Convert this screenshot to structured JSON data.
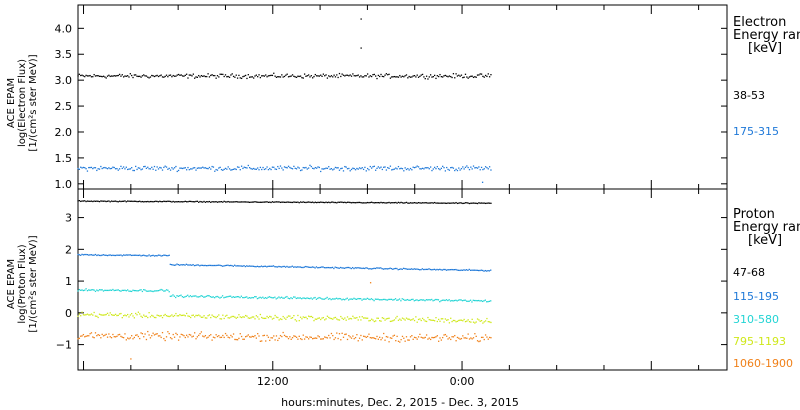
{
  "chart_data": [
    {
      "type": "scatter",
      "panel": "electron",
      "ylabel": [
        "ACE EPAM",
        "log(Electron Flux)",
        "[1/(cm²s ster MeV)]"
      ],
      "ylim": [
        0.9,
        4.45
      ],
      "yticks": [
        1.0,
        1.5,
        2.0,
        2.5,
        3.0,
        3.5,
        4.0
      ],
      "ytick_labels": [
        "1.0",
        "1.5",
        "2.0",
        "2.5",
        "3.0",
        "3.5",
        "4.0"
      ],
      "legend": {
        "title": [
          "Electron",
          "Energy ran",
          "[keV]"
        ],
        "placement": "right"
      },
      "series": [
        {
          "name": "38-53",
          "color": "#000000",
          "level": 3.08,
          "noise": 0.06,
          "outliers": [
            [
              17.6,
              3.62
            ],
            [
              17.6,
              4.18
            ]
          ]
        },
        {
          "name": "175-315",
          "color": "#1e78d8",
          "level": 1.3,
          "noise": 0.07,
          "outliers": [
            [
              25.3,
              1.03
            ]
          ]
        }
      ]
    },
    {
      "type": "scatter",
      "panel": "proton",
      "ylabel": [
        "ACE EPAM",
        "log(Proton Flux)",
        "[1/(cm²s ster MeV)]"
      ],
      "ylim": [
        -1.8,
        3.9
      ],
      "yticks": [
        -1,
        0,
        1,
        2,
        3
      ],
      "ytick_labels": [
        "−1",
        "0",
        "1",
        "2",
        "3"
      ],
      "legend": {
        "title": [
          "Proton",
          "Energy ran",
          "[keV]"
        ],
        "placement": "right"
      },
      "series": [
        {
          "name": "47-68",
          "color": "#000000",
          "segments": [
            [
              -0.35,
              25.9,
              3.52,
              3.45
            ]
          ],
          "noise": 0.02
        },
        {
          "name": "115-195",
          "color": "#1e78d8",
          "segments": [
            [
              -0.35,
              5.5,
              1.83,
              1.8
            ],
            [
              5.5,
              25.9,
              1.52,
              1.33
            ]
          ],
          "noise": 0.03
        },
        {
          "name": "310-580",
          "color": "#22d4d4",
          "segments": [
            [
              -0.35,
              5.5,
              0.72,
              0.7
            ],
            [
              5.5,
              25.9,
              0.53,
              0.37
            ]
          ],
          "noise": 0.05
        },
        {
          "name": "795-1193",
          "color": "#cfe81a",
          "segments": [
            [
              -0.35,
              25.9,
              -0.05,
              -0.25
            ]
          ],
          "noise": 0.12
        },
        {
          "name": "1060-1900",
          "color": "#f08018",
          "segments": [
            [
              -0.35,
              25.9,
              -0.72,
              -0.8
            ]
          ],
          "noise": 0.18,
          "outliers": [
            [
              3.0,
              -1.45
            ],
            [
              18.2,
              0.95
            ]
          ]
        }
      ]
    }
  ],
  "x_axis": {
    "label": "hours:minutes, Dec.  2, 2015 - Dec.  3, 2015",
    "range_hours": [
      -0.35,
      40.8
    ],
    "ticks_hours": [
      12,
      24
    ],
    "tick_labels": [
      "12:00",
      "0:00"
    ]
  }
}
